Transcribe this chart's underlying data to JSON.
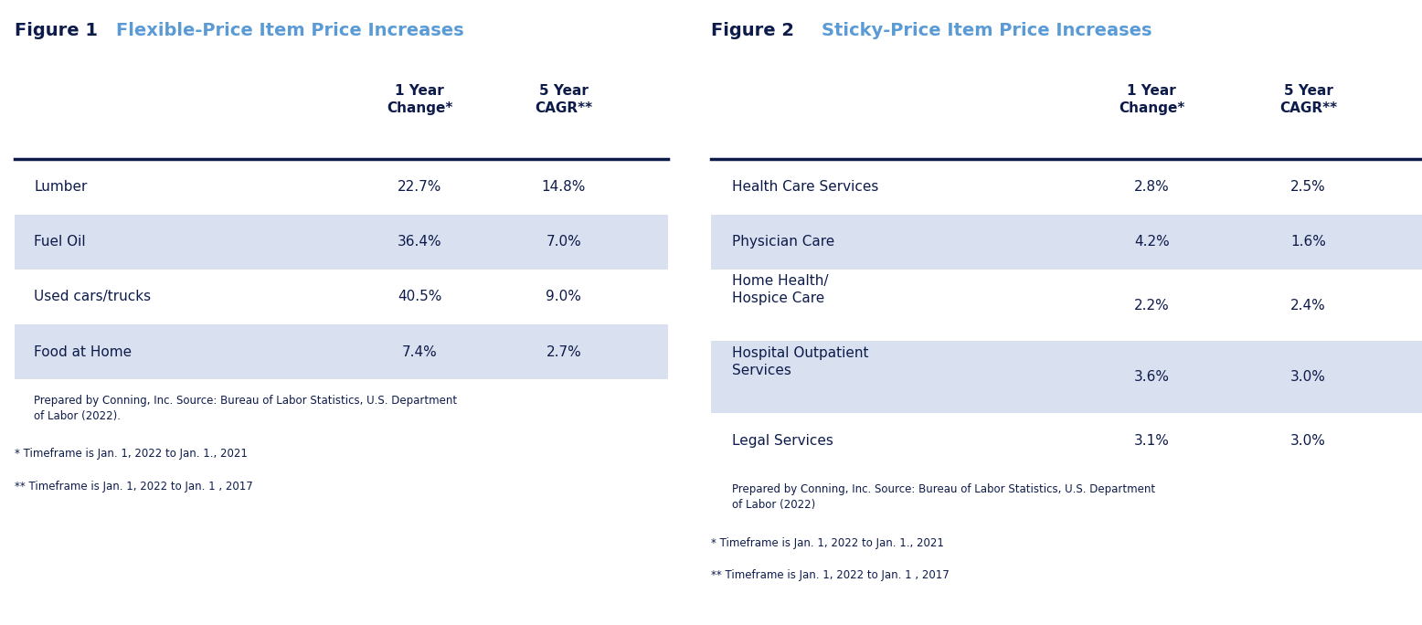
{
  "fig1_title_black": "Figure 1 ",
  "fig1_title_blue": "Flexible-Price Item Price Increases",
  "fig2_title_black": "Figure 2 ",
  "fig2_title_blue": "Sticky-Price Item Price Increases",
  "fig1_col_headers": [
    "",
    "1 Year\nChange*",
    "5 Year\nCAGR**"
  ],
  "fig1_rows": [
    [
      "Lumber",
      "22.7%",
      "14.8%"
    ],
    [
      "Fuel Oil",
      "36.4%",
      "7.0%"
    ],
    [
      "Used cars/trucks",
      "40.5%",
      "9.0%"
    ],
    [
      "Food at Home",
      "7.4%",
      "2.7%"
    ]
  ],
  "fig1_row_shaded": [
    false,
    true,
    false,
    true
  ],
  "fig2_col_headers": [
    "",
    "1 Year\nChange*",
    "5 Year\nCAGR**"
  ],
  "fig2_rows": [
    [
      "Health Care Services",
      "2.8%",
      "2.5%"
    ],
    [
      "Physician Care",
      "4.2%",
      "1.6%"
    ],
    [
      "Home Health/\nHospice Care",
      "2.2%",
      "2.4%"
    ],
    [
      "Hospital Outpatient\nServices",
      "3.6%",
      "3.0%"
    ],
    [
      "Legal Services",
      "3.1%",
      "3.0%"
    ]
  ],
  "fig2_row_shaded": [
    false,
    true,
    false,
    true,
    false
  ],
  "fig1_footnote1": "Prepared by Conning, Inc. Source: Bureau of Labor Statistics, U.S. Department\nof Labor (2022).",
  "fig1_footnote2": "* Timeframe is Jan. 1, 2022 to Jan. 1., 2021",
  "fig1_footnote3": "** Timeframe is Jan. 1, 2022 to Jan. 1 , 2017",
  "fig2_footnote1": "Prepared by Conning, Inc. Source: Bureau of Labor Statistics, U.S. Department\nof Labor (2022)",
  "fig2_footnote2": "* Timeframe is Jan. 1, 2022 to Jan. 1., 2021",
  "fig2_footnote3": "** Timeframe is Jan. 1, 2022 to Jan. 1 , 2017",
  "shaded_color": "#d9e0f0",
  "divider_color": "#0d1b4b",
  "title_black_color": "#0d1b4b",
  "title_blue_color": "#5b9bd5",
  "data_color": "#0d1b4b",
  "footnote_color": "#0d1b4b",
  "background_color": "#ffffff"
}
